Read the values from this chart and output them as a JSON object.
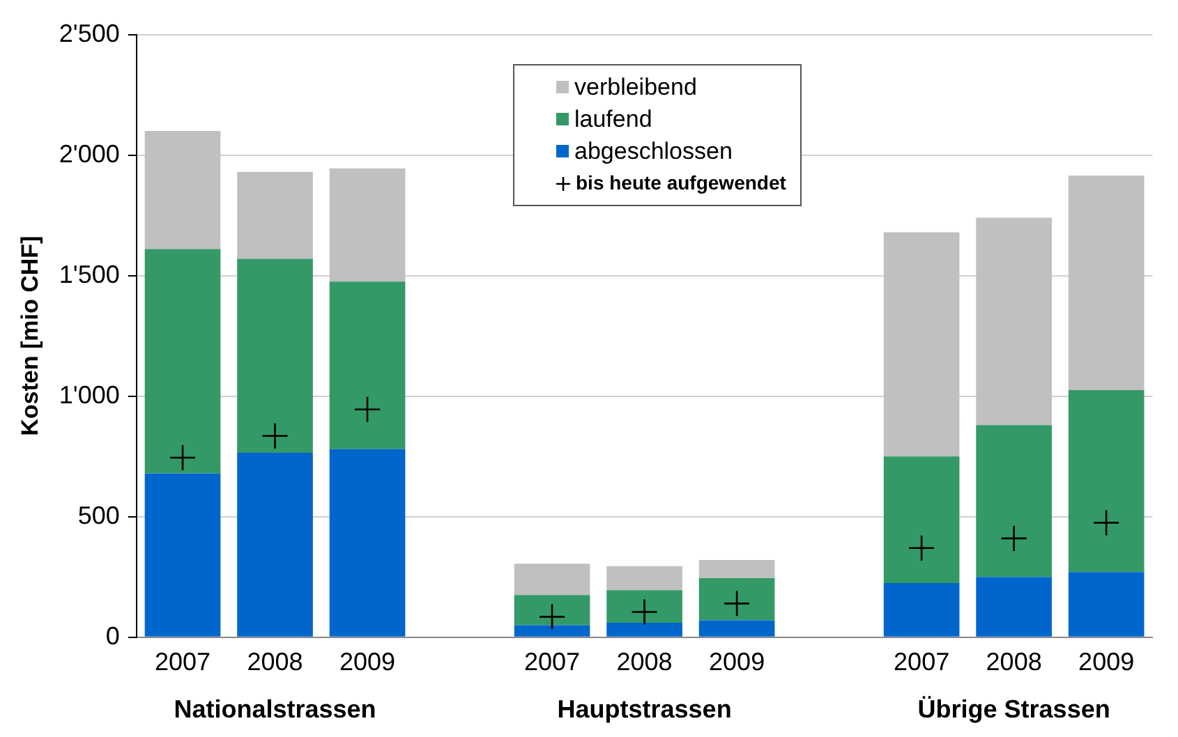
{
  "chart_data": {
    "type": "bar",
    "stacked": true,
    "ylabel": "Kosten [mio CHF]",
    "categories": [
      "2007",
      "2008",
      "2009",
      null,
      "2007",
      "2008",
      "2009",
      null,
      "2007",
      "2008",
      "2009"
    ],
    "series": [
      {
        "name": "abgeschlossen",
        "color": "#0066cc",
        "values": [
          680,
          765,
          780,
          null,
          50,
          60,
          70,
          null,
          225,
          250,
          270
        ]
      },
      {
        "name": "laufend",
        "color": "#339966",
        "values": [
          930,
          805,
          695,
          null,
          125,
          135,
          175,
          null,
          525,
          630,
          755
        ]
      },
      {
        "name": "verbleibend",
        "color": "#c0c0c0",
        "values": [
          490,
          360,
          470,
          null,
          130,
          100,
          75,
          null,
          930,
          860,
          890
        ]
      },
      {
        "name": "bis heute aufgewendet",
        "type": "scatter",
        "marker": "cross",
        "color": "#000000",
        "values": [
          745,
          835,
          945,
          null,
          85,
          105,
          140,
          null,
          370,
          410,
          475
        ]
      }
    ],
    "annotations": [
      "Nationalstrassen",
      "Hauptstrassen",
      "Übrige Strassen"
    ],
    "ylim": [
      0,
      2500
    ],
    "yticks": [
      {
        "value": 0,
        "label": "0"
      },
      {
        "value": 500,
        "label": "500"
      },
      {
        "value": 1000,
        "label": "1'000"
      },
      {
        "value": 1500,
        "label": "1'500"
      },
      {
        "value": 2000,
        "label": "2'000"
      },
      {
        "value": 2500,
        "label": "2'500"
      }
    ],
    "grid": "y",
    "legend": "top"
  }
}
